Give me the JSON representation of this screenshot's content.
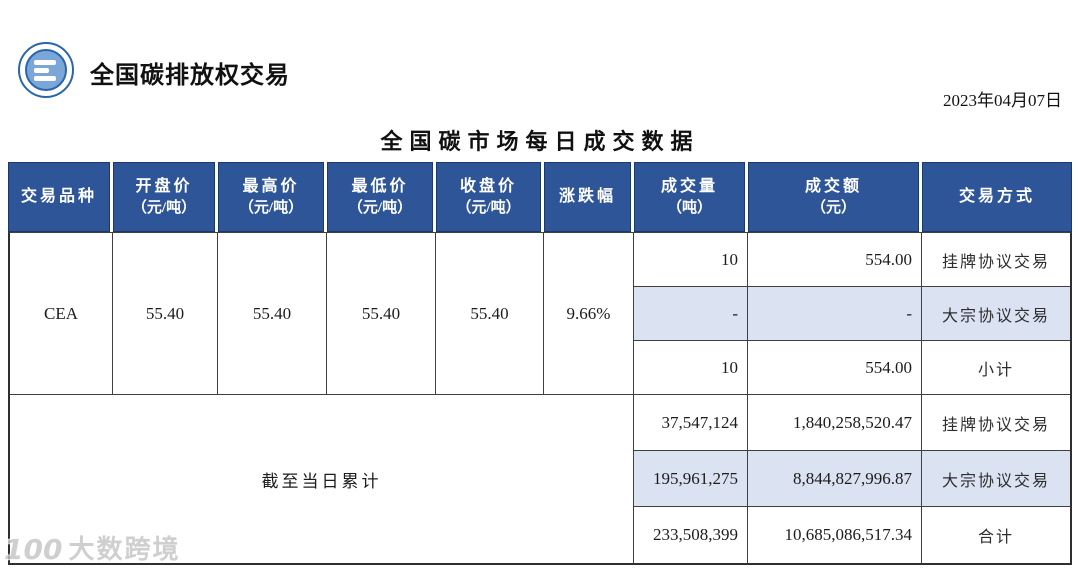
{
  "brand": {
    "title": "全国碳排放权交易",
    "logo_icon": "carbon-exchange-seal"
  },
  "report_date": "2023年04月07日",
  "page_title": "全国碳市场每日成交数据",
  "colors": {
    "header_bg": "#2e5597",
    "alt_row_bg": "#dbe3f3",
    "logo_blue": "#2a66ad"
  },
  "table": {
    "columns": [
      {
        "label": "交易品种",
        "unit": ""
      },
      {
        "label": "开盘价",
        "unit": "（元/吨）"
      },
      {
        "label": "最高价",
        "unit": "（元/吨）"
      },
      {
        "label": "最低价",
        "unit": "（元/吨）"
      },
      {
        "label": "收盘价",
        "unit": "（元/吨）"
      },
      {
        "label": "涨跌幅",
        "unit": ""
      },
      {
        "label": "成交量",
        "unit": "（吨）"
      },
      {
        "label": "成交额",
        "unit": "（元）"
      },
      {
        "label": "交易方式",
        "unit": ""
      }
    ],
    "daily": {
      "product": "CEA",
      "open": "55.40",
      "high": "55.40",
      "low": "55.40",
      "close": "55.40",
      "change": "9.66%",
      "rows": [
        {
          "volume": "10",
          "amount": "554.00",
          "method": "挂牌协议交易"
        },
        {
          "volume": "-",
          "amount": "-",
          "method": "大宗协议交易"
        },
        {
          "volume": "10",
          "amount": "554.00",
          "method": "小计"
        }
      ]
    },
    "cumulative": {
      "label": "截至当日累计",
      "rows": [
        {
          "volume": "37,547,124",
          "amount": "1,840,258,520.47",
          "method": "挂牌协议交易"
        },
        {
          "volume": "195,961,275",
          "amount": "8,844,827,996.87",
          "method": "大宗协议交易"
        },
        {
          "volume": "233,508,399",
          "amount": "10,685,086,517.34",
          "method": "合计"
        }
      ]
    }
  },
  "watermark": {
    "mark": "100",
    "text": "大数跨境"
  }
}
